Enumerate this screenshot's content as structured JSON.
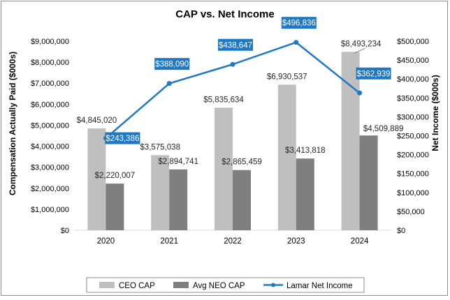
{
  "chart_data": {
    "type": "bar",
    "title": "CAP vs. Net Income",
    "categories": [
      "2020",
      "2021",
      "2022",
      "2023",
      "2024"
    ],
    "series": [
      {
        "name": "CEO CAP",
        "kind": "bar",
        "axis": "left",
        "color": "#bfbfbf",
        "values": [
          4845020,
          3575038,
          5835634,
          6930537,
          8493234
        ],
        "labels": [
          "$4,845,020",
          "$3,575,038",
          "$5,835,634",
          "$6,930,537",
          "$8,493,234"
        ]
      },
      {
        "name": "Avg NEO CAP",
        "kind": "bar",
        "axis": "left",
        "color": "#7f7f7f",
        "values": [
          2220007,
          2894741,
          2865459,
          3413818,
          4509889
        ],
        "labels": [
          "$2,220,007",
          "$2,894,741",
          "$2,865,459",
          "$3,413,818",
          "$4,509,889"
        ]
      },
      {
        "name": "Lamar Net Income",
        "kind": "line",
        "axis": "right",
        "color": "#1f78c1",
        "values": [
          243386,
          388090,
          438647,
          496836,
          362939
        ],
        "labels": [
          "$243,386",
          "$388,090",
          "$438,647",
          "$496,836",
          "$362,939"
        ]
      }
    ],
    "ylabel": "Compensation Actually Paid ($000s)",
    "ylabel_right": "Net Income ($000s)",
    "ylim": [
      0,
      9000000
    ],
    "ylim_right": [
      0,
      500000
    ],
    "yticks": [
      "$0",
      "$1,000,000",
      "$2,000,000",
      "$3,000,000",
      "$4,000,000",
      "$5,000,000",
      "$6,000,000",
      "$7,000,000",
      "$8,000,000",
      "$9,000,000"
    ],
    "yticks_right": [
      "$0",
      "$50,000",
      "$100,000",
      "$150,000",
      "$200,000",
      "$250,000",
      "$300,000",
      "$350,000",
      "$400,000",
      "$450,000",
      "$500,000"
    ],
    "grid": false,
    "legend": "bottom"
  }
}
